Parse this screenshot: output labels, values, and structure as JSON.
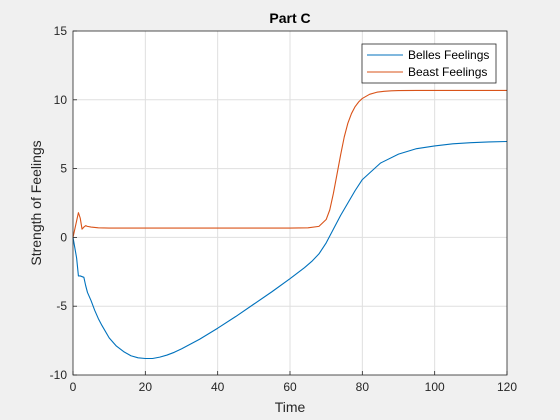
{
  "chart_data": {
    "type": "line",
    "title": "Part C",
    "xlabel": "Time",
    "ylabel": "Strength of Feelings",
    "xlim": [
      0,
      120
    ],
    "ylim": [
      -10,
      15
    ],
    "xticks": [
      0,
      20,
      40,
      60,
      80,
      100,
      120
    ],
    "yticks": [
      -10,
      -5,
      0,
      5,
      10,
      15
    ],
    "grid": true,
    "legend_position": "top-right",
    "series": [
      {
        "name": "Belles Feelings",
        "color": "#0072BD",
        "x": [
          0,
          1,
          1.5,
          2,
          3,
          3.5,
          4,
          5,
          6,
          7,
          8,
          10,
          12,
          14,
          16,
          18,
          20,
          22,
          24,
          26,
          28,
          30,
          35,
          40,
          45,
          50,
          55,
          60,
          62,
          64,
          66,
          68,
          70,
          72,
          74,
          76,
          78,
          80,
          85,
          90,
          95,
          100,
          105,
          110,
          115,
          120
        ],
        "y": [
          0,
          -1.5,
          -2.8,
          -2.8,
          -2.9,
          -3.5,
          -4.0,
          -4.6,
          -5.3,
          -5.9,
          -6.4,
          -7.3,
          -7.9,
          -8.3,
          -8.6,
          -8.75,
          -8.8,
          -8.8,
          -8.7,
          -8.55,
          -8.35,
          -8.1,
          -7.4,
          -6.6,
          -5.75,
          -4.85,
          -3.95,
          -3.0,
          -2.6,
          -2.2,
          -1.75,
          -1.2,
          -0.4,
          0.6,
          1.6,
          2.5,
          3.4,
          4.2,
          5.4,
          6.05,
          6.45,
          6.65,
          6.8,
          6.88,
          6.94,
          6.97
        ]
      },
      {
        "name": "Beast Feelings",
        "color": "#D95319",
        "x": [
          0,
          1,
          1.5,
          2,
          2.5,
          3,
          3.5,
          4,
          5,
          7,
          10,
          20,
          40,
          60,
          65,
          68,
          70,
          71,
          72,
          73,
          74,
          75,
          76,
          77,
          78,
          79,
          80,
          82,
          84,
          86,
          88,
          90,
          95,
          100,
          110,
          120
        ],
        "y": [
          0,
          1.2,
          1.8,
          1.4,
          0.6,
          0.75,
          0.85,
          0.8,
          0.75,
          0.7,
          0.68,
          0.68,
          0.68,
          0.68,
          0.7,
          0.8,
          1.3,
          2.0,
          3.2,
          4.6,
          6.0,
          7.3,
          8.3,
          9.0,
          9.5,
          9.85,
          10.1,
          10.4,
          10.55,
          10.62,
          10.65,
          10.67,
          10.68,
          10.68,
          10.68,
          10.68
        ]
      }
    ]
  }
}
